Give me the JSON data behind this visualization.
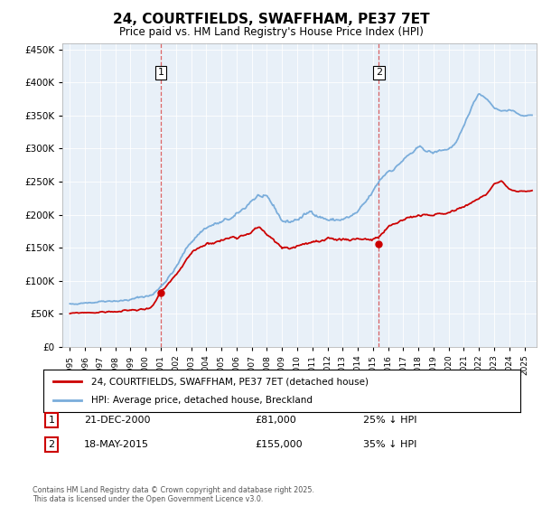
{
  "title": "24, COURTFIELDS, SWAFFHAM, PE37 7ET",
  "subtitle": "Price paid vs. HM Land Registry's House Price Index (HPI)",
  "legend_line1": "24, COURTFIELDS, SWAFFHAM, PE37 7ET (detached house)",
  "legend_line2": "HPI: Average price, detached house, Breckland",
  "footnote": "Contains HM Land Registry data © Crown copyright and database right 2025.\nThis data is licensed under the Open Government Licence v3.0.",
  "marker1_date": "21-DEC-2000",
  "marker1_price": "£81,000",
  "marker1_hpi": "25% ↓ HPI",
  "marker1_x": 2001.0,
  "marker1_y_red": 81000,
  "marker2_date": "18-MAY-2015",
  "marker2_price": "£155,000",
  "marker2_hpi": "35% ↓ HPI",
  "marker2_x": 2015.38,
  "marker2_y_red": 155000,
  "red_color": "#cc0000",
  "blue_color": "#7aaddb",
  "vline_color": "#cc0000",
  "ylim": [
    0,
    460000
  ],
  "xlim_start": 1994.5,
  "xlim_end": 2025.8,
  "plot_bg_color": "#e8f0f8",
  "background_color": "#ffffff",
  "grid_color": "#ffffff"
}
